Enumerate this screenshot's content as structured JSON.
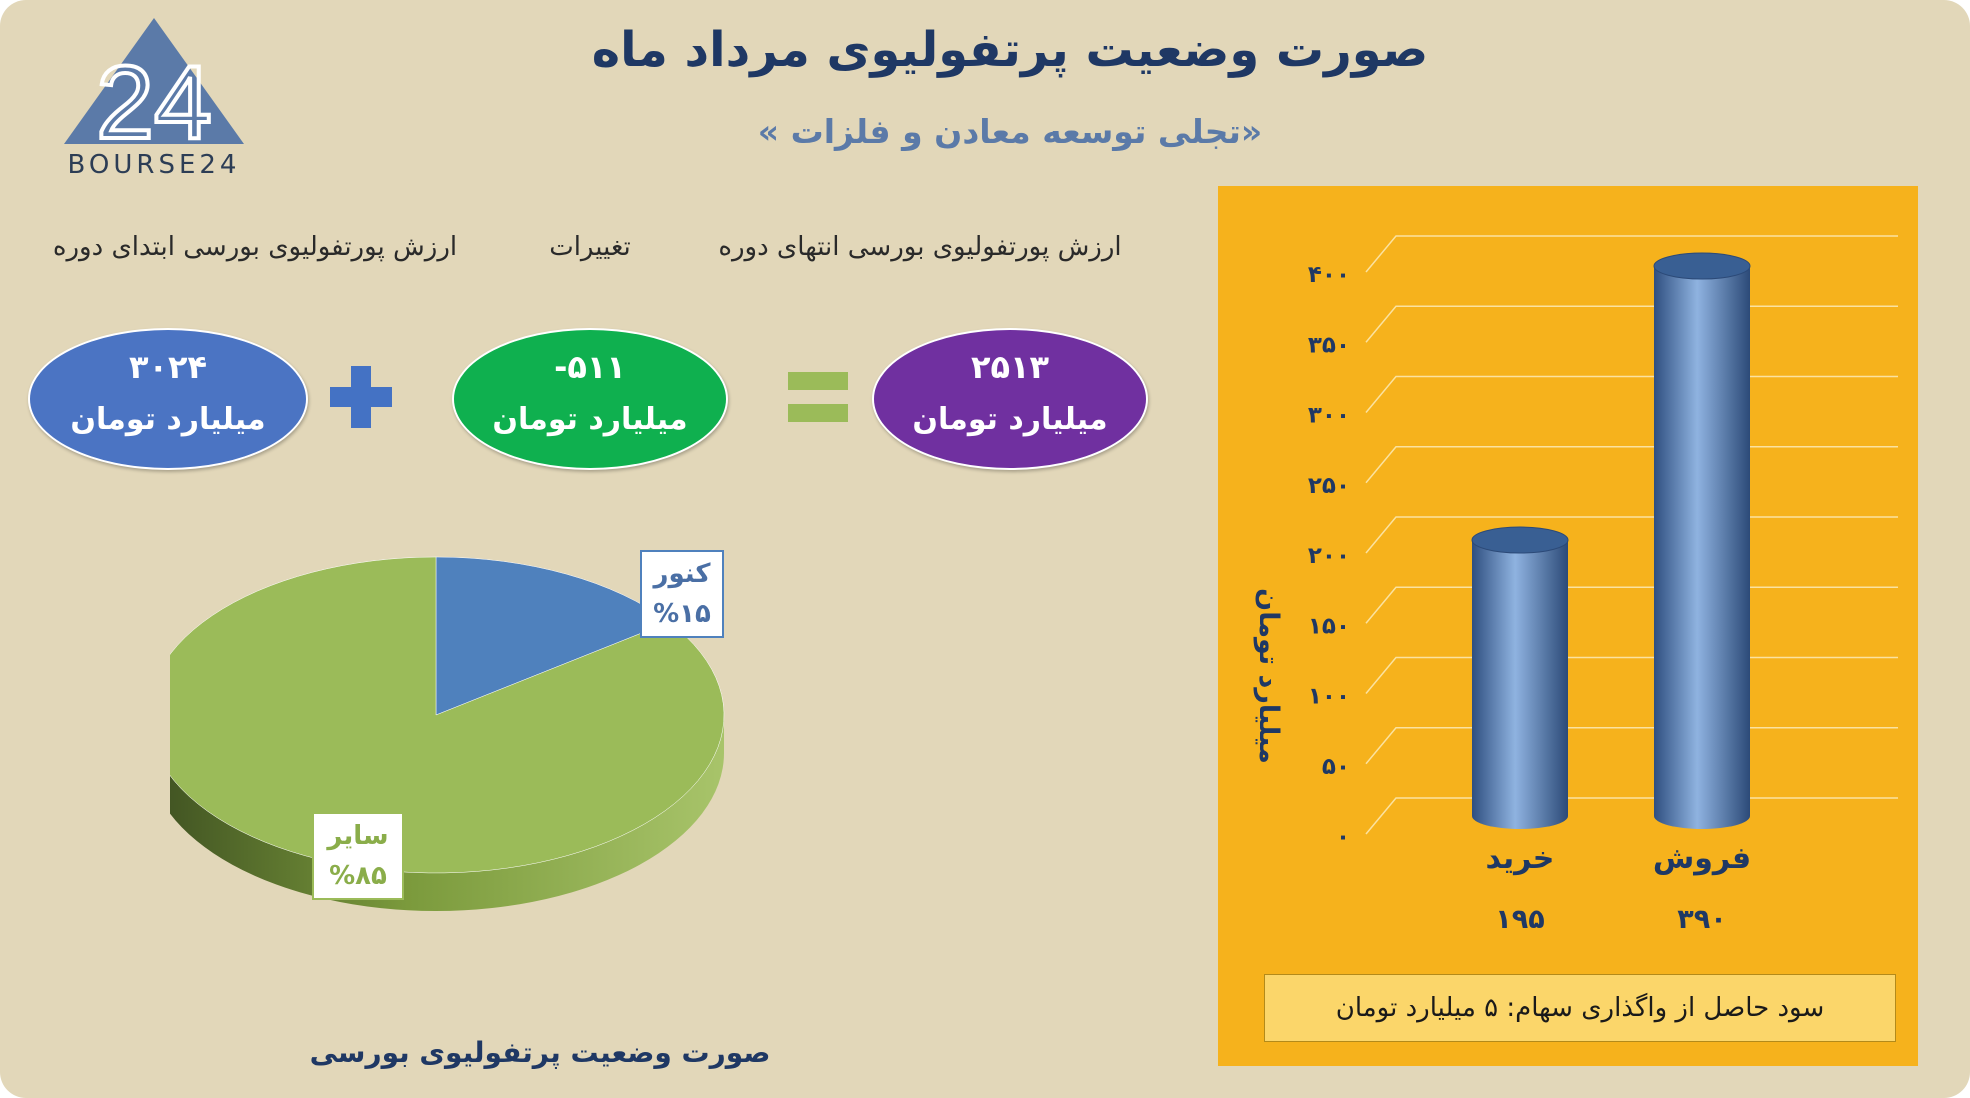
{
  "header": {
    "title": "صورت وضعیت پرتفولیوی مرداد ماه",
    "subtitle": "«تجلی توسعه معادن و فلزات »"
  },
  "logo": {
    "text": "BOURSE24",
    "mark": "24"
  },
  "equation": {
    "end_label": "ارزش پورتفولیوی بورسی انتهای دوره",
    "change_label": "تغییرات",
    "start_label": "ارزش پورتفولیوی بورسی ابتدای دوره",
    "end_value": "۲۵۱۳",
    "change_value": "-۵۱۱",
    "start_value": "۳۰۲۴",
    "unit": "میلیارد تومان",
    "colors": {
      "start": "#4b74c3",
      "change": "#0fb04f",
      "end": "#7030a0",
      "operator": "#4472c4",
      "equals": "#9bbb59"
    }
  },
  "chart_data": [
    {
      "type": "pie",
      "title": "صورت وضعیت پرتفولیوی بورسی",
      "slices": [
        {
          "label": "کنور",
          "value": 15,
          "value_label": "%۱۵",
          "color": "#4f81bd"
        },
        {
          "label": "سایر",
          "value": 85,
          "value_label": "%۸۵",
          "color": "#9bbb59"
        }
      ]
    },
    {
      "type": "bar",
      "categories": [
        "خرید",
        "فروش"
      ],
      "values": [
        195,
        390
      ],
      "value_labels": [
        "۱۹۵",
        "۳۹۰"
      ],
      "ylabel": "میلیارد تومان",
      "ylim": [
        0,
        400
      ],
      "yticks": [
        0,
        50,
        100,
        150,
        200,
        250,
        300,
        350,
        400
      ],
      "ytick_labels": [
        "۰",
        "۵۰",
        "۱۰۰",
        "۱۵۰",
        "۲۰۰",
        "۲۵۰",
        "۳۰۰",
        "۳۵۰",
        "۴۰۰"
      ],
      "grid": true,
      "bar_color": "#4f81bd",
      "background": "#f6b21c"
    }
  ],
  "footnote": "سود حاصل از واگذاری سهام: ۵ میلیارد تومان"
}
